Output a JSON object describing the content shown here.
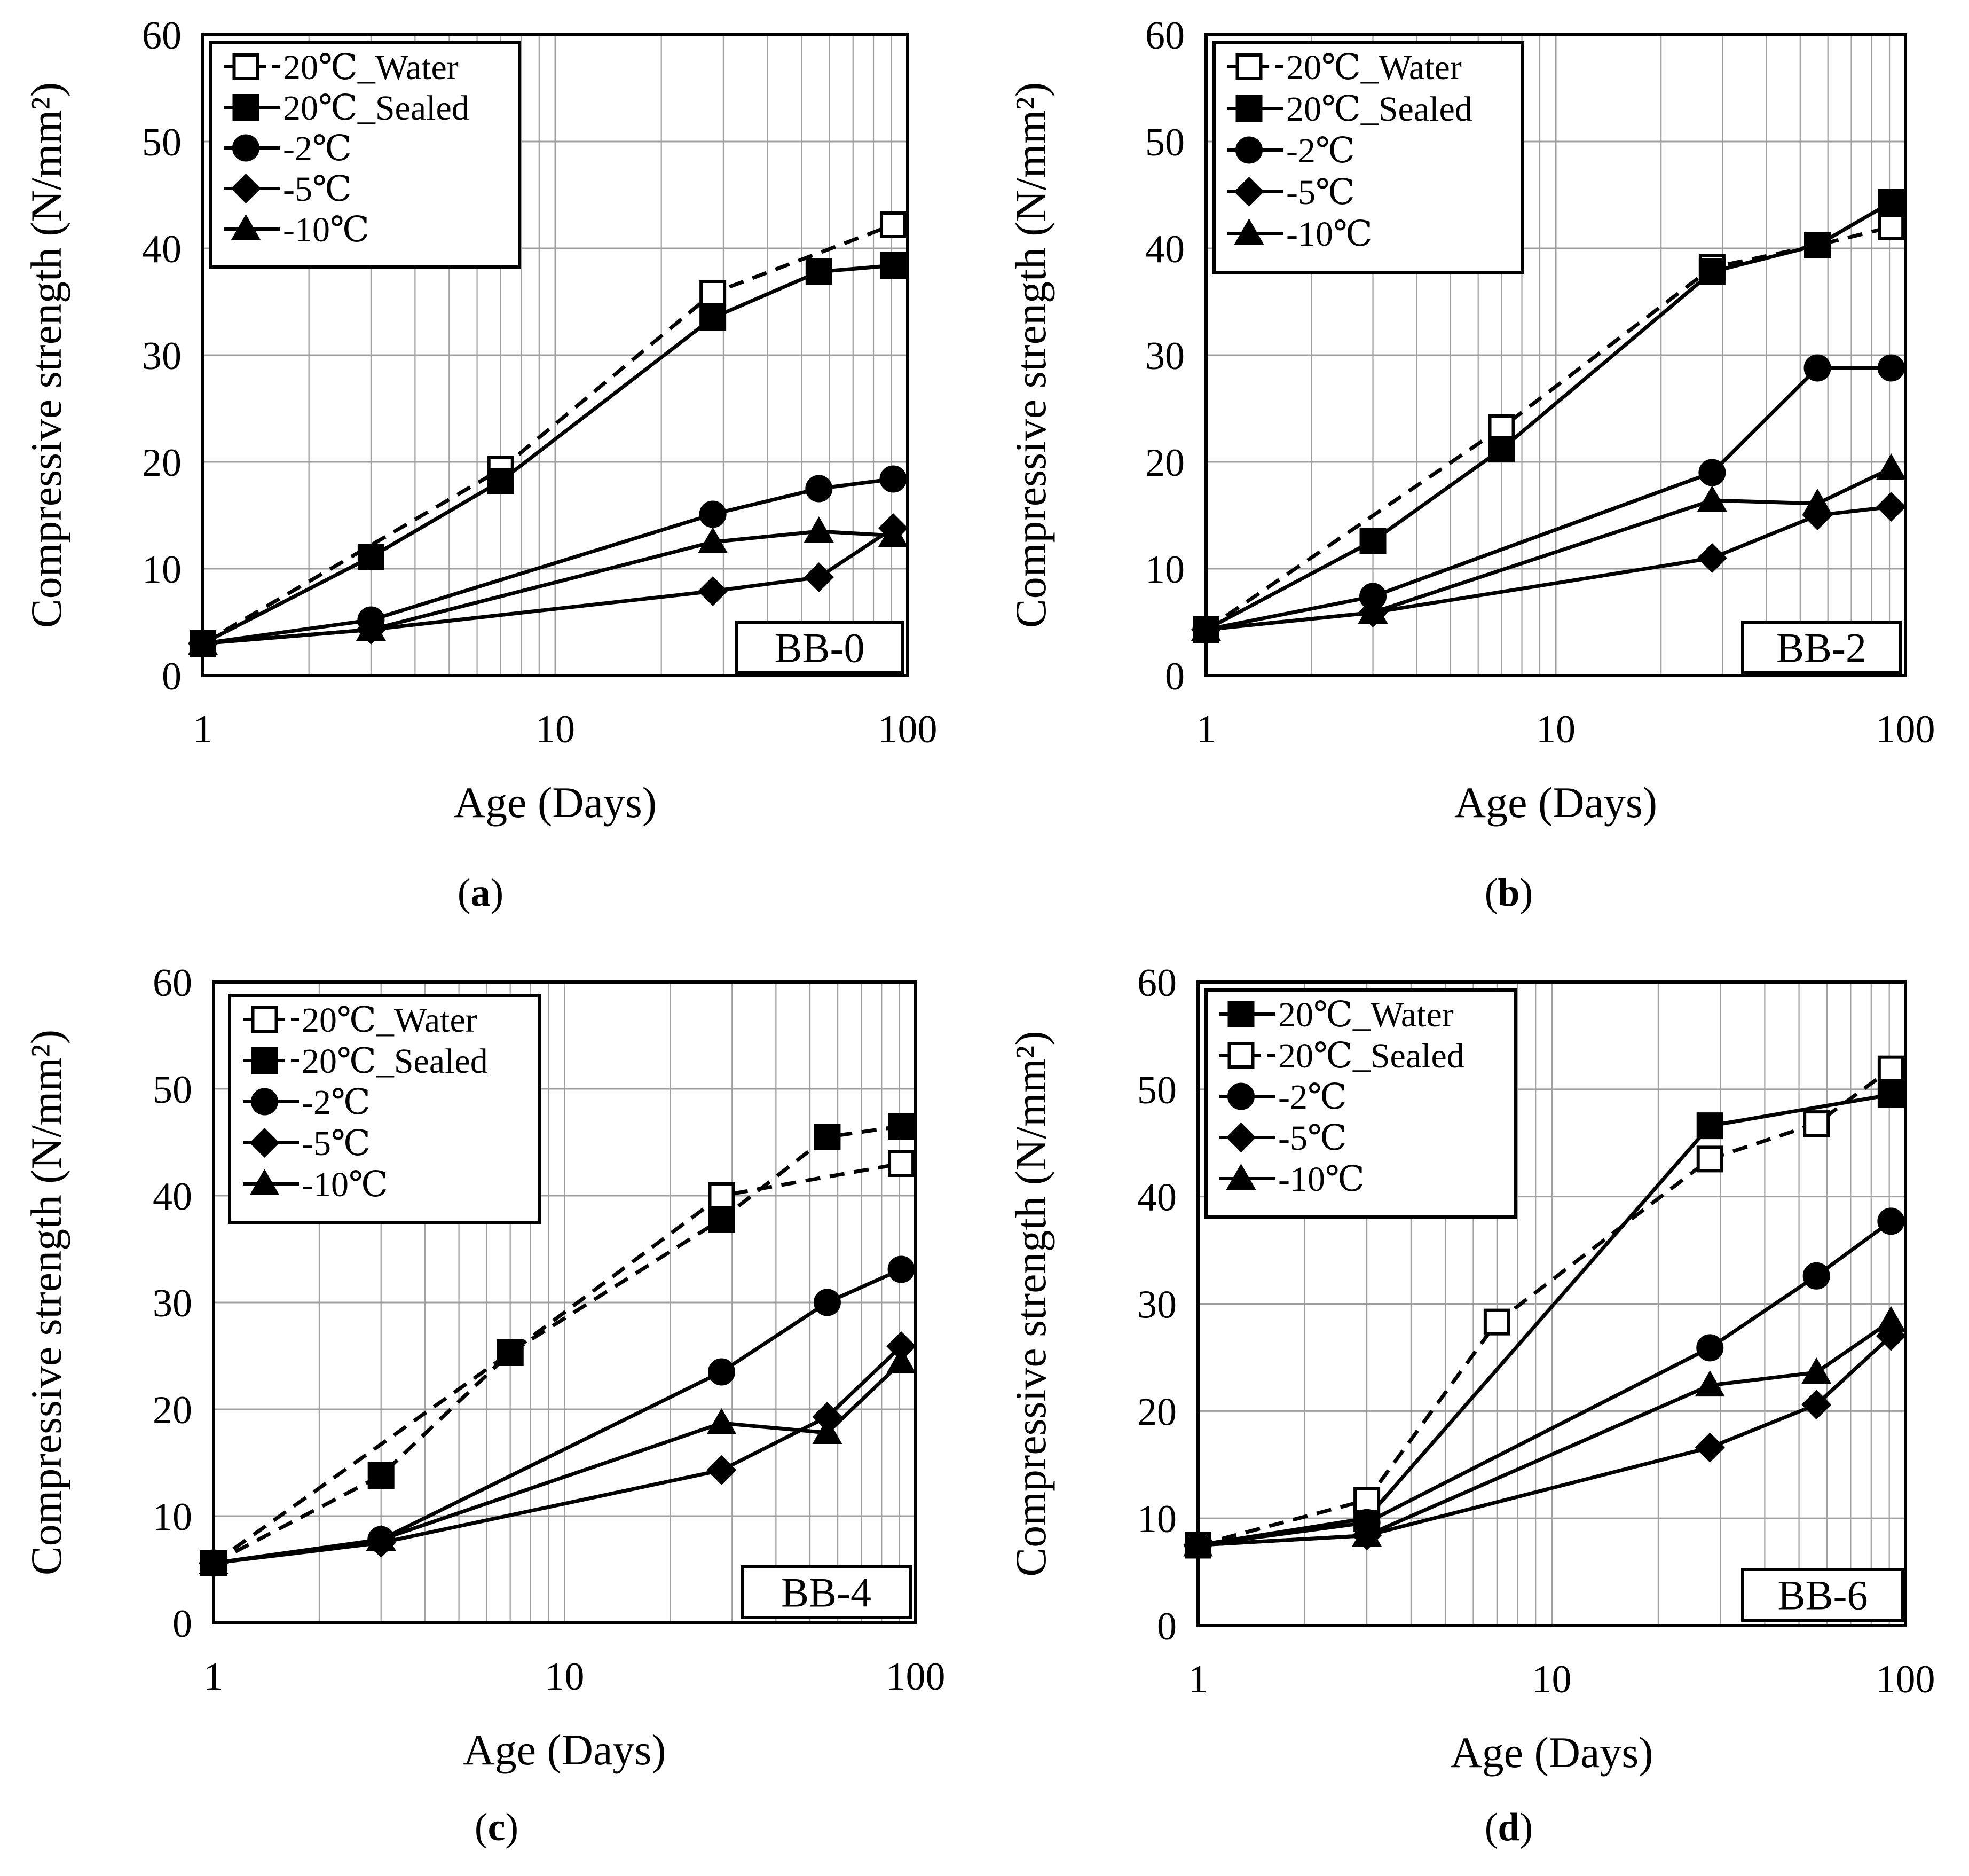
{
  "chart_data": [
    {
      "type": "line",
      "panel": "a",
      "caption_letter": "a",
      "tag": "BB-0",
      "xlabel": "Age (Days)",
      "ylabel": "Compressive strength (N/mm²)",
      "xscale": "log",
      "xlim": [
        1,
        100
      ],
      "ylim": [
        0,
        60
      ],
      "yticks": [
        "0",
        "10",
        "20",
        "30",
        "40",
        "50",
        "60"
      ],
      "xticks": [
        "1",
        "10",
        "100"
      ],
      "legend_position": "top-left",
      "series": [
        {
          "name": "20℃_Water",
          "marker": "square-open",
          "dash": "dashed",
          "x": [
            1,
            7,
            28,
            91
          ],
          "y": [
            3.0,
            19.3,
            35.8,
            42.2
          ]
        },
        {
          "name": "20℃_Sealed",
          "marker": "square",
          "dash": "solid",
          "x": [
            1,
            3,
            7,
            28,
            56,
            91
          ],
          "y": [
            3.0,
            11.1,
            18.2,
            33.5,
            37.8,
            38.4
          ]
        },
        {
          "name": "-2℃",
          "marker": "circle",
          "dash": "solid",
          "x": [
            1,
            3,
            28,
            56,
            91
          ],
          "y": [
            3.0,
            5.2,
            15.1,
            17.5,
            18.4
          ]
        },
        {
          "name": "-5℃",
          "marker": "diamond",
          "dash": "solid",
          "x": [
            1,
            3,
            28,
            56,
            91
          ],
          "y": [
            3.0,
            4.3,
            7.9,
            9.2,
            13.8
          ]
        },
        {
          "name": "-10℃",
          "marker": "triangle",
          "dash": "solid",
          "x": [
            1,
            3,
            28,
            56,
            91
          ],
          "y": [
            3.0,
            4.3,
            12.5,
            13.5,
            13.1
          ]
        }
      ]
    },
    {
      "type": "line",
      "panel": "b",
      "caption_letter": "b",
      "tag": "BB-2",
      "xlabel": "Age (Days)",
      "ylabel": "Compressive strength (N/mm²)",
      "xscale": "log",
      "xlim": [
        1,
        100
      ],
      "ylim": [
        0,
        60
      ],
      "yticks": [
        "0",
        "10",
        "20",
        "30",
        "40",
        "50",
        "60"
      ],
      "xticks": [
        "1",
        "10",
        "100"
      ],
      "legend_position": "top-left",
      "series": [
        {
          "name": "20℃_Water",
          "marker": "square-open",
          "dash": "dashed",
          "x": [
            1,
            7,
            28,
            56,
            91
          ],
          "y": [
            4.3,
            23.2,
            38.2,
            40.3,
            42.0
          ]
        },
        {
          "name": "20℃_Sealed",
          "marker": "square",
          "dash": "solid",
          "x": [
            1,
            3,
            7,
            28,
            56,
            91
          ],
          "y": [
            4.3,
            12.6,
            21.2,
            37.8,
            40.3,
            44.3
          ]
        },
        {
          "name": "-2℃",
          "marker": "circle",
          "dash": "solid",
          "x": [
            1,
            3,
            28,
            56,
            91
          ],
          "y": [
            4.3,
            7.4,
            19.0,
            28.8,
            28.8
          ]
        },
        {
          "name": "-5℃",
          "marker": "diamond",
          "dash": "solid",
          "x": [
            1,
            3,
            28,
            56,
            91
          ],
          "y": [
            4.3,
            5.9,
            11.0,
            15.0,
            15.8
          ]
        },
        {
          "name": "-10℃",
          "marker": "triangle",
          "dash": "solid",
          "x": [
            1,
            3,
            28,
            56,
            91
          ],
          "y": [
            4.3,
            5.9,
            16.4,
            16.1,
            19.4
          ]
        }
      ]
    },
    {
      "type": "line",
      "panel": "c",
      "caption_letter": "c",
      "tag": "BB-4",
      "xlabel": "Age (Days)",
      "ylabel": "Compressive strength (N/mm²)",
      "xscale": "log",
      "xlim": [
        1,
        100
      ],
      "ylim": [
        0,
        60
      ],
      "yticks": [
        "0",
        "10",
        "20",
        "30",
        "40",
        "50",
        "60"
      ],
      "xticks": [
        "1",
        "10",
        "100"
      ],
      "legend_position": "top-left",
      "series": [
        {
          "name": "20℃_Water",
          "marker": "square-open",
          "dash": "dashed",
          "x": [
            1,
            7,
            28,
            91
          ],
          "y": [
            5.6,
            25.3,
            40.0,
            43.0
          ]
        },
        {
          "name": "20℃_Sealed",
          "marker": "square",
          "dash": "dashed",
          "x": [
            1,
            3,
            7,
            28,
            56,
            91
          ],
          "y": [
            5.6,
            13.8,
            25.3,
            37.8,
            45.5,
            46.5
          ]
        },
        {
          "name": "-2℃",
          "marker": "circle",
          "dash": "solid",
          "x": [
            1,
            3,
            28,
            56,
            91
          ],
          "y": [
            5.6,
            7.8,
            23.5,
            30.0,
            33.1
          ]
        },
        {
          "name": "-5℃",
          "marker": "diamond",
          "dash": "solid",
          "x": [
            1,
            3,
            28,
            56,
            91
          ],
          "y": [
            5.6,
            7.5,
            14.3,
            19.3,
            25.9
          ]
        },
        {
          "name": "-10℃",
          "marker": "triangle",
          "dash": "solid",
          "x": [
            1,
            3,
            28,
            56,
            91
          ],
          "y": [
            5.6,
            7.8,
            18.7,
            17.8,
            24.4
          ]
        }
      ]
    },
    {
      "type": "line",
      "panel": "d",
      "caption_letter": "d",
      "tag": "BB-6",
      "xlabel": "Age (Days)",
      "ylabel": "Compressive strength (N/mm²)",
      "xscale": "log",
      "xlim": [
        1,
        100
      ],
      "ylim": [
        0,
        60
      ],
      "yticks": [
        "0",
        "10",
        "20",
        "30",
        "40",
        "50",
        "60"
      ],
      "xticks": [
        "1",
        "10",
        "100"
      ],
      "legend_position": "top-left",
      "series": [
        {
          "name": "20℃_Water",
          "marker": "square",
          "dash": "solid",
          "x": [
            1,
            3,
            28,
            91
          ],
          "y": [
            7.5,
            10.0,
            46.6,
            49.5
          ]
        },
        {
          "name": "20℃_Sealed",
          "marker": "square-open",
          "dash": "dashed",
          "x": [
            1,
            3,
            7,
            28,
            56,
            91
          ],
          "y": [
            7.5,
            11.7,
            28.3,
            43.5,
            46.8,
            51.9
          ]
        },
        {
          "name": "-2℃",
          "marker": "circle",
          "dash": "solid",
          "x": [
            1,
            3,
            28,
            56,
            91
          ],
          "y": [
            7.5,
            9.6,
            25.9,
            32.6,
            37.7
          ]
        },
        {
          "name": "-5℃",
          "marker": "diamond",
          "dash": "solid",
          "x": [
            1,
            3,
            28,
            56,
            91
          ],
          "y": [
            7.5,
            8.4,
            16.6,
            20.6,
            27.0
          ]
        },
        {
          "name": "-10℃",
          "marker": "triangle",
          "dash": "solid",
          "x": [
            1,
            3,
            28,
            56,
            91
          ],
          "y": [
            7.5,
            8.4,
            22.4,
            23.6,
            28.4
          ]
        }
      ]
    }
  ]
}
